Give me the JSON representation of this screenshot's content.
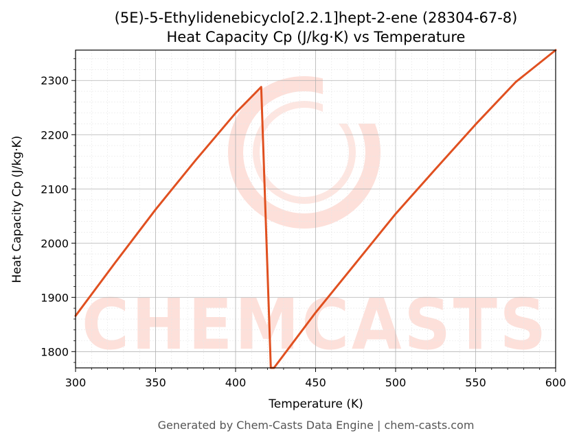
{
  "chart_data": {
    "type": "line",
    "title_line1": "(5E)-5-Ethylidenebicyclo[2.2.1]hept-2-ene (28304-67-8)",
    "title_line2": "Heat Capacity Cp (J/kg·K) vs Temperature",
    "xlabel": "Temperature (K)",
    "ylabel": "Heat Capacity Cp (J/kg·K)",
    "xlim": [
      300,
      600
    ],
    "ylim": [
      1770,
      2356
    ],
    "xticks": [
      300,
      350,
      400,
      450,
      500,
      550,
      600
    ],
    "yticks": [
      1800,
      1900,
      2000,
      2100,
      2200,
      2300
    ],
    "grid": true,
    "series": [
      {
        "color": "#e05020",
        "x": [
          300,
          325,
          350,
          375,
          400,
          416,
          422,
          424,
          450,
          475,
          500,
          525,
          550,
          575,
          600
        ],
        "y": [
          1866,
          1965,
          2062,
          2153,
          2240,
          2288,
          1770,
          1770,
          1872,
          1963,
          2054,
          2137,
          2219,
          2297,
          2356
        ]
      }
    ]
  },
  "watermark": {
    "text": "CHEMCASTS",
    "color": "#fde0da"
  },
  "footer": "Generated by Chem-Casts Data Engine | chem-casts.com"
}
